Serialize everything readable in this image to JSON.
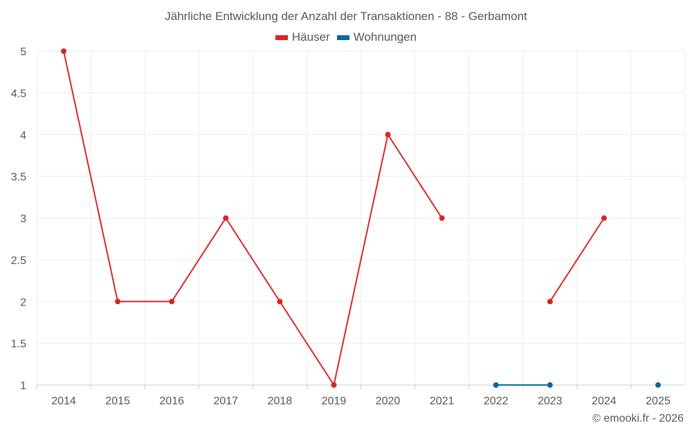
{
  "chart_data": {
    "type": "line",
    "title": "Jährliche Entwicklung der Anzahl der Transaktionen - 88 - Gerbamont",
    "categories": [
      "2014",
      "2015",
      "2016",
      "2017",
      "2018",
      "2019",
      "2020",
      "2021",
      "2022",
      "2023",
      "2024",
      "2025"
    ],
    "series": [
      {
        "name": "Häuser",
        "color": "#d92525",
        "values": [
          5,
          2,
          2,
          3,
          2,
          1,
          4,
          3,
          null,
          2,
          3,
          null
        ]
      },
      {
        "name": "Wohnungen",
        "color": "#0a67a3",
        "values": [
          null,
          null,
          null,
          null,
          null,
          null,
          null,
          null,
          1,
          1,
          null,
          1
        ]
      }
    ],
    "yticks": [
      "1",
      "1.5",
      "2",
      "2.5",
      "3",
      "3.5",
      "4",
      "4.5",
      "5"
    ],
    "ylim": [
      1,
      5
    ],
    "xlabel": "",
    "ylabel": "",
    "grid": true,
    "legend": "top-center"
  },
  "credit": "© emooki.fr - 2026"
}
